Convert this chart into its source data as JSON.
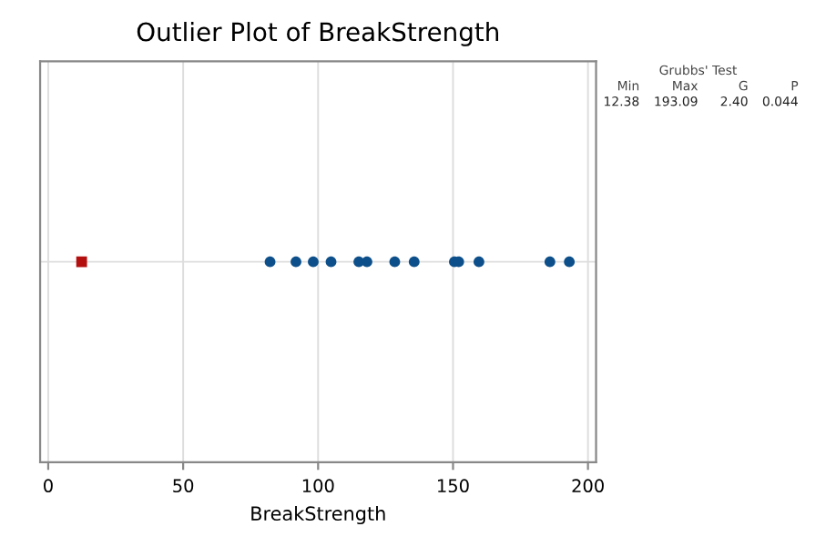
{
  "chart_data": {
    "type": "scatter",
    "title": "Outlier Plot of BreakStrength",
    "xlabel": "BreakStrength",
    "orientation": "horizontal",
    "categories": [
      null
    ],
    "series": [
      {
        "color": "#0c4f8a",
        "marker": "circle",
        "x": [
          null,
          null,
          null,
          null,
          null,
          null,
          null,
          null,
          null,
          null,
          null,
          null,
          null
        ],
        "values": [
          82.2,
          91.8,
          98.2,
          104.8,
          115.1,
          118.1,
          128.4,
          135.6,
          150.5,
          152.1,
          159.6,
          185.9,
          193.09
        ]
      },
      {
        "color": "#b30f0f",
        "marker": "square",
        "x": [
          null
        ],
        "values": [
          12.38
        ]
      }
    ],
    "xlim": [
      -3,
      203
    ],
    "xticks": [
      0,
      50,
      100,
      150,
      200
    ],
    "grid": true,
    "tick_labels": "x",
    "annotations": [
      "Grubbs' Test",
      "Min",
      "Max",
      "G",
      "P",
      "12.38",
      "193.09",
      "2.40",
      "0.044"
    ]
  }
}
